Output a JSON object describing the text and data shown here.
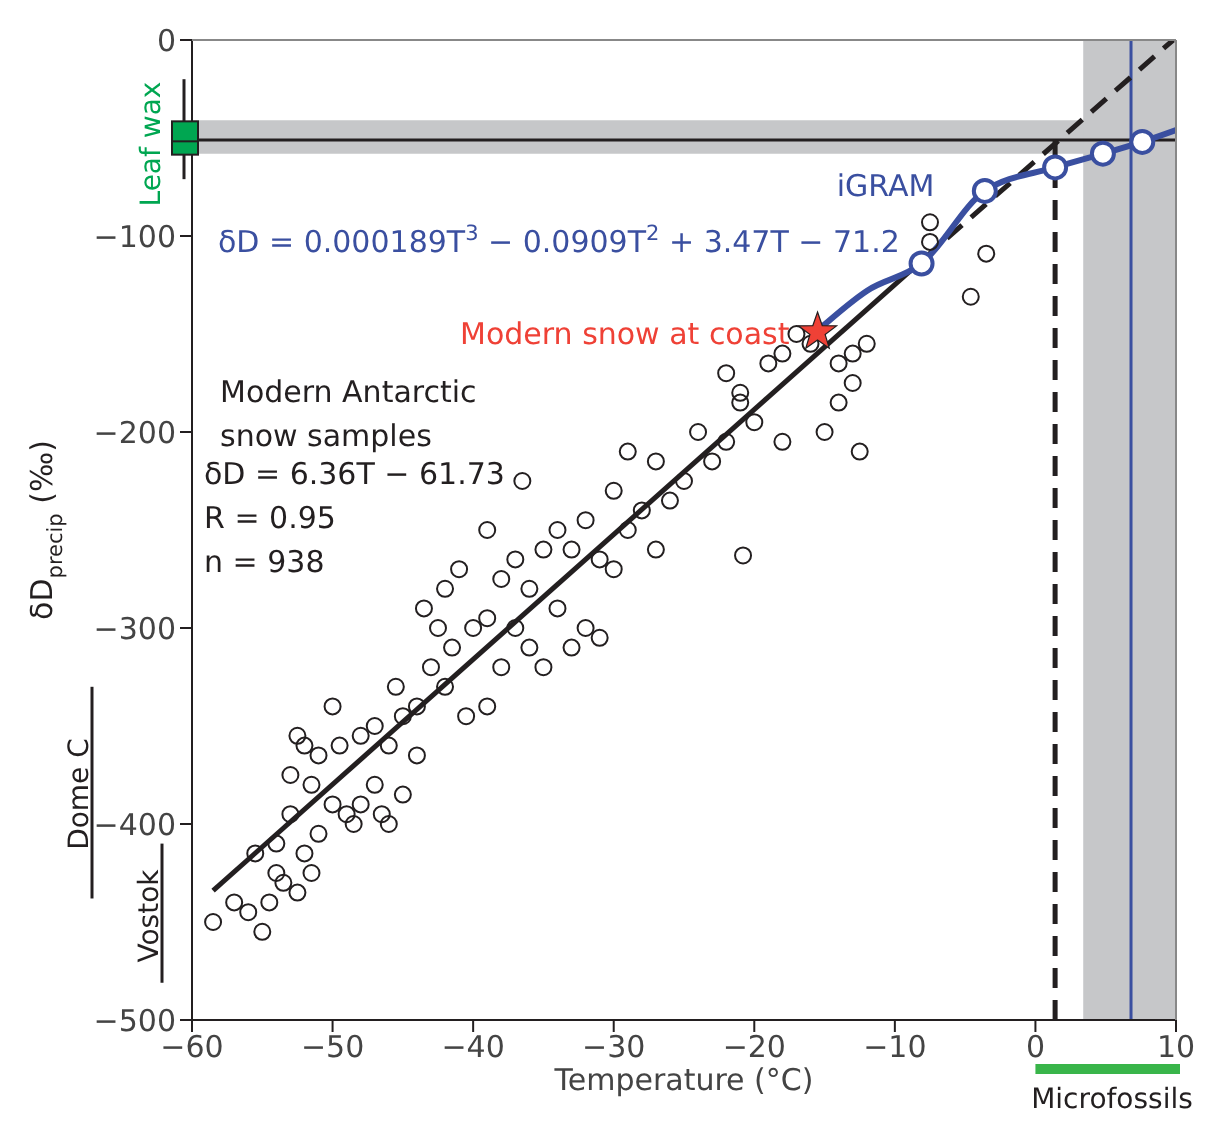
{
  "chart_data": {
    "type": "scatter",
    "xlabel": "Temperature (°C)",
    "ylabel": "δD$_{precip}$ (‰)",
    "xlim": [
      -60,
      10
    ],
    "ylim": [
      -500,
      0
    ],
    "xticks": [
      {
        "value": -60,
        "label": "−60"
      },
      {
        "value": -50,
        "label": "−50"
      },
      {
        "value": -40,
        "label": "−40"
      },
      {
        "value": -30,
        "label": "−30"
      },
      {
        "value": -20,
        "label": "−20"
      },
      {
        "value": -10,
        "label": "−10"
      },
      0,
      10
    ],
    "yticks": [
      {
        "value": -500,
        "label": "−500"
      },
      {
        "value": -400,
        "label": "−400"
      },
      {
        "value": -300,
        "label": "−300"
      },
      {
        "value": -200,
        "label": "−200"
      },
      {
        "value": -100,
        "label": "−100"
      },
      0
    ],
    "bands": [
      {
        "axis": "y",
        "from": -58,
        "to": -41,
        "color": "#c6c7c9"
      },
      {
        "axis": "x",
        "from": 3.4,
        "to": 10,
        "color": "#c6c7c9"
      }
    ],
    "ref_lines": [
      {
        "axis": "y",
        "value": -51,
        "color": "#231f20"
      },
      {
        "axis": "x",
        "value": 6.8,
        "color": "#3a4fa0"
      }
    ],
    "series": [
      {
        "name": "Modern Antarctic snow samples",
        "color": "#231f20",
        "marker": "circle",
        "x": [
          -58.5,
          -57,
          -56,
          -55,
          -54.5,
          -54,
          -53.5,
          -52.5,
          -54,
          -53,
          -52,
          -51.5,
          -51,
          -55.5,
          -52.5,
          -52,
          -51,
          -53,
          -51.5,
          -50,
          -49,
          -48,
          -48.5,
          -47,
          -46.5,
          -47,
          -46,
          -45,
          -48,
          -49.5,
          -50,
          -44,
          -45.5,
          -43,
          -42.5,
          -43.5,
          -42,
          -41,
          -40,
          -41.5,
          -39,
          -42,
          -40.5,
          -39,
          -38,
          -37,
          -36,
          -35,
          -38,
          -37,
          -36.5,
          -36,
          -34,
          -33,
          -32,
          -31,
          -35,
          -33,
          -30,
          -32,
          -30,
          -29,
          -28,
          -27,
          -26,
          -27,
          -25,
          -24,
          -23,
          -22,
          -21,
          -20,
          -20.8,
          -18,
          -22,
          -21,
          -19,
          -18,
          -17,
          -16,
          -14,
          -13,
          -12,
          -13,
          -14,
          -15,
          -12.5,
          -7.5,
          -7.5,
          -3.5,
          -4.6,
          -44,
          -45,
          -46,
          -34,
          -39,
          -29,
          -31
        ],
        "values": [
          -450,
          -440,
          -445,
          -455,
          -440,
          -425,
          -430,
          -435,
          -410,
          -395,
          -415,
          -425,
          -405,
          -415,
          -355,
          -360,
          -365,
          -375,
          -380,
          -390,
          -395,
          -390,
          -400,
          -380,
          -395,
          -350,
          -360,
          -345,
          -355,
          -360,
          -340,
          -340,
          -330,
          -320,
          -300,
          -290,
          -280,
          -270,
          -300,
          -310,
          -295,
          -330,
          -345,
          -340,
          -320,
          -300,
          -310,
          -320,
          -275,
          -265,
          -225,
          -280,
          -290,
          -310,
          -300,
          -305,
          -260,
          -260,
          -270,
          -245,
          -230,
          -250,
          -240,
          -260,
          -235,
          -215,
          -225,
          -200,
          -215,
          -205,
          -185,
          -195,
          -263,
          -205,
          -170,
          -180,
          -165,
          -160,
          -150,
          -155,
          -165,
          -160,
          -155,
          -175,
          -185,
          -200,
          -210,
          -93,
          -103,
          -109,
          -131,
          -365,
          -385,
          -400,
          -250,
          -250,
          -210,
          -265
        ]
      },
      {
        "type": "line",
        "color": "#231f20",
        "x": [
          -58.5,
          -8
        ],
        "values": [
          -434,
          -112
        ]
      },
      {
        "type": "line",
        "color": "#231f20",
        "line_style": "dashed",
        "x": [
          -8,
          9.8
        ],
        "values": [
          -112,
          0
        ]
      },
      {
        "type": "line",
        "color": "#231f20",
        "line_style": "dashed",
        "x": [
          1.4,
          1.4
        ],
        "values": [
          -500,
          -51
        ]
      },
      {
        "name": "iGRAM",
        "type": "line",
        "color": "#3a4fa0",
        "x": [
          -15.3,
          -12,
          -8.1,
          -3.6,
          1.4,
          4.8,
          7.6,
          10
        ],
        "values": [
          -147,
          -128,
          -114,
          -77,
          -65,
          -58,
          -52,
          -46
        ]
      },
      {
        "type": "scatter",
        "color": "#3a4fa0",
        "marker": "circle",
        "x": [
          -8.1,
          -3.6,
          1.4,
          4.8,
          7.6
        ],
        "values": [
          -114,
          -77,
          -65,
          -58,
          -52
        ]
      },
      {
        "name": "Modern snow at coast",
        "type": "scatter",
        "color": "#ef4136",
        "marker": "star",
        "x": [
          -15.5
        ],
        "values": [
          -149
        ]
      }
    ],
    "annotations": [
      "δD = 0.000189T$^{3}$ − 0.0909T$^{2}$ + 3.47T − 71.2",
      "δD =  6.36T − 61.73",
      "R = 0.95",
      "n = 938",
      "Leaf wax",
      "Dome C",
      "Vostok",
      "Microfossils"
    ]
  }
}
